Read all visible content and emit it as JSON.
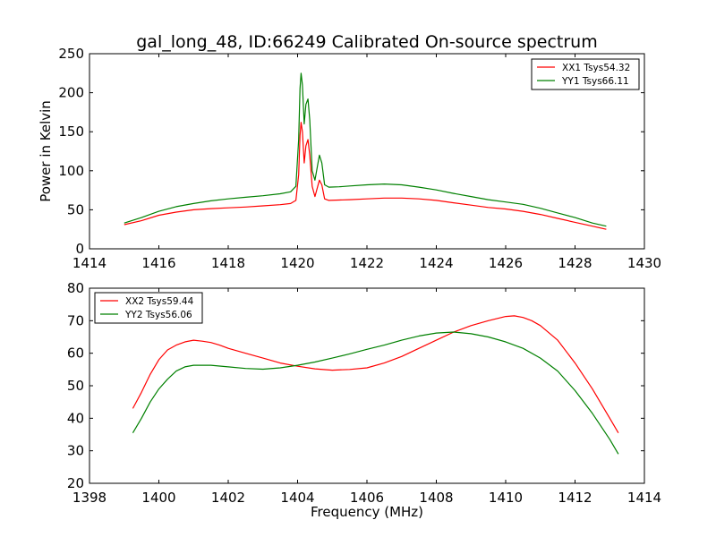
{
  "figure": {
    "title": "gal_long_48, ID:66249 Calibrated On-source spectrum"
  },
  "chart_data": [
    {
      "type": "line",
      "title": "gal_long_48, ID:66249 Calibrated On-source spectrum",
      "xlabel": "",
      "ylabel": "Power in Kelvin",
      "xlim": [
        1414,
        1430
      ],
      "ylim": [
        0,
        250
      ],
      "xticks": [
        "1414",
        "1416",
        "1418",
        "1420",
        "1422",
        "1424",
        "1426",
        "1428",
        "1430"
      ],
      "yticks": [
        "0",
        "50",
        "100",
        "150",
        "200",
        "250"
      ],
      "grid": false,
      "legend_position": "top-right",
      "series": [
        {
          "name": "XX1 Tsys54.32",
          "color": "#ff0000",
          "points": [
            [
              1415.0,
              31
            ],
            [
              1415.5,
              36
            ],
            [
              1416.0,
              43
            ],
            [
              1416.5,
              47
            ],
            [
              1417.0,
              50
            ],
            [
              1417.5,
              51.5
            ],
            [
              1418.0,
              52.5
            ],
            [
              1418.5,
              53.5
            ],
            [
              1419.0,
              55
            ],
            [
              1419.5,
              56.5
            ],
            [
              1419.8,
              58
            ],
            [
              1419.95,
              62
            ],
            [
              1420.03,
              95
            ],
            [
              1420.07,
              145
            ],
            [
              1420.1,
              162
            ],
            [
              1420.14,
              150
            ],
            [
              1420.19,
              110
            ],
            [
              1420.24,
              132
            ],
            [
              1420.3,
              140
            ],
            [
              1420.35,
              120
            ],
            [
              1420.42,
              80
            ],
            [
              1420.5,
              67
            ],
            [
              1420.58,
              80
            ],
            [
              1420.63,
              88
            ],
            [
              1420.7,
              82
            ],
            [
              1420.78,
              64
            ],
            [
              1420.9,
              62
            ],
            [
              1421.2,
              62.5
            ],
            [
              1421.5,
              63
            ],
            [
              1422.0,
              64
            ],
            [
              1422.5,
              65
            ],
            [
              1423.0,
              65
            ],
            [
              1423.5,
              64
            ],
            [
              1424.0,
              62
            ],
            [
              1424.5,
              59
            ],
            [
              1425.0,
              56
            ],
            [
              1425.5,
              53
            ],
            [
              1426.0,
              51
            ],
            [
              1426.5,
              48
            ],
            [
              1427.0,
              44
            ],
            [
              1427.5,
              39
            ],
            [
              1428.0,
              34
            ],
            [
              1428.5,
              29
            ],
            [
              1428.9,
              25
            ]
          ]
        },
        {
          "name": "YY1 Tsys66.11",
          "color": "#008000",
          "points": [
            [
              1415.0,
              33
            ],
            [
              1415.5,
              40
            ],
            [
              1416.0,
              48
            ],
            [
              1416.5,
              54
            ],
            [
              1417.0,
              58
            ],
            [
              1417.5,
              61.5
            ],
            [
              1418.0,
              64
            ],
            [
              1418.5,
              66
            ],
            [
              1419.0,
              68
            ],
            [
              1419.5,
              70.5
            ],
            [
              1419.8,
              73
            ],
            [
              1419.95,
              80
            ],
            [
              1420.03,
              140
            ],
            [
              1420.07,
              205
            ],
            [
              1420.1,
              225
            ],
            [
              1420.14,
              210
            ],
            [
              1420.19,
              160
            ],
            [
              1420.24,
              185
            ],
            [
              1420.3,
              192
            ],
            [
              1420.35,
              165
            ],
            [
              1420.42,
              100
            ],
            [
              1420.5,
              88
            ],
            [
              1420.58,
              108
            ],
            [
              1420.63,
              120
            ],
            [
              1420.7,
              110
            ],
            [
              1420.78,
              82
            ],
            [
              1420.9,
              79
            ],
            [
              1421.2,
              79.5
            ],
            [
              1421.5,
              80.5
            ],
            [
              1422.0,
              82
            ],
            [
              1422.5,
              83
            ],
            [
              1423.0,
              82
            ],
            [
              1423.5,
              79
            ],
            [
              1424.0,
              75.5
            ],
            [
              1424.5,
              71
            ],
            [
              1425.0,
              67
            ],
            [
              1425.5,
              63
            ],
            [
              1426.0,
              60
            ],
            [
              1426.5,
              57
            ],
            [
              1427.0,
              52
            ],
            [
              1427.5,
              46
            ],
            [
              1428.0,
              40
            ],
            [
              1428.5,
              33
            ],
            [
              1428.9,
              29
            ]
          ]
        }
      ]
    },
    {
      "type": "line",
      "title": "",
      "xlabel": "Frequency (MHz)",
      "ylabel": "",
      "xlim": [
        1398,
        1414
      ],
      "ylim": [
        20,
        80
      ],
      "xticks": [
        "1398",
        "1400",
        "1402",
        "1404",
        "1406",
        "1408",
        "1410",
        "1412",
        "1414"
      ],
      "yticks": [
        "20",
        "30",
        "40",
        "50",
        "60",
        "70",
        "80"
      ],
      "grid": false,
      "legend_position": "top-left",
      "series": [
        {
          "name": "XX2 Tsys59.44",
          "color": "#ff0000",
          "points": [
            [
              1399.25,
              43
            ],
            [
              1399.5,
              48
            ],
            [
              1399.75,
              53.5
            ],
            [
              1400.0,
              58
            ],
            [
              1400.25,
              61
            ],
            [
              1400.5,
              62.5
            ],
            [
              1400.75,
              63.5
            ],
            [
              1401.0,
              64
            ],
            [
              1401.25,
              63.7
            ],
            [
              1401.5,
              63.3
            ],
            [
              1401.75,
              62.5
            ],
            [
              1402.0,
              61.5
            ],
            [
              1402.5,
              60
            ],
            [
              1403.0,
              58.5
            ],
            [
              1403.5,
              57
            ],
            [
              1404.0,
              56
            ],
            [
              1404.5,
              55.2
            ],
            [
              1405.0,
              54.8
            ],
            [
              1405.5,
              55
            ],
            [
              1406.0,
              55.5
            ],
            [
              1406.5,
              57
            ],
            [
              1407.0,
              59
            ],
            [
              1407.5,
              61.5
            ],
            [
              1408.0,
              64
            ],
            [
              1408.5,
              66.5
            ],
            [
              1409.0,
              68.5
            ],
            [
              1409.5,
              70
            ],
            [
              1410.0,
              71.3
            ],
            [
              1410.25,
              71.5
            ],
            [
              1410.5,
              71
            ],
            [
              1410.75,
              70
            ],
            [
              1411.0,
              68.5
            ],
            [
              1411.5,
              64
            ],
            [
              1412.0,
              57
            ],
            [
              1412.5,
              49
            ],
            [
              1413.0,
              40
            ],
            [
              1413.25,
              35.5
            ]
          ]
        },
        {
          "name": "YY2 Tsys56.06",
          "color": "#008000",
          "points": [
            [
              1399.25,
              35.5
            ],
            [
              1399.5,
              40
            ],
            [
              1399.75,
              45
            ],
            [
              1400.0,
              49
            ],
            [
              1400.25,
              52
            ],
            [
              1400.5,
              54.5
            ],
            [
              1400.75,
              55.8
            ],
            [
              1401.0,
              56.3
            ],
            [
              1401.5,
              56.3
            ],
            [
              1402.0,
              55.8
            ],
            [
              1402.5,
              55.3
            ],
            [
              1403.0,
              55.1
            ],
            [
              1403.5,
              55.5
            ],
            [
              1404.0,
              56.3
            ],
            [
              1404.5,
              57.3
            ],
            [
              1405.0,
              58.5
            ],
            [
              1405.5,
              59.8
            ],
            [
              1406.0,
              61.2
            ],
            [
              1406.5,
              62.5
            ],
            [
              1407.0,
              64
            ],
            [
              1407.5,
              65.3
            ],
            [
              1408.0,
              66.2
            ],
            [
              1408.5,
              66.5
            ],
            [
              1409.0,
              66
            ],
            [
              1409.5,
              65
            ],
            [
              1410.0,
              63.5
            ],
            [
              1410.5,
              61.5
            ],
            [
              1411.0,
              58.5
            ],
            [
              1411.5,
              54.5
            ],
            [
              1412.0,
              48.5
            ],
            [
              1412.5,
              41.5
            ],
            [
              1413.0,
              33.5
            ],
            [
              1413.25,
              29
            ]
          ]
        }
      ]
    }
  ]
}
